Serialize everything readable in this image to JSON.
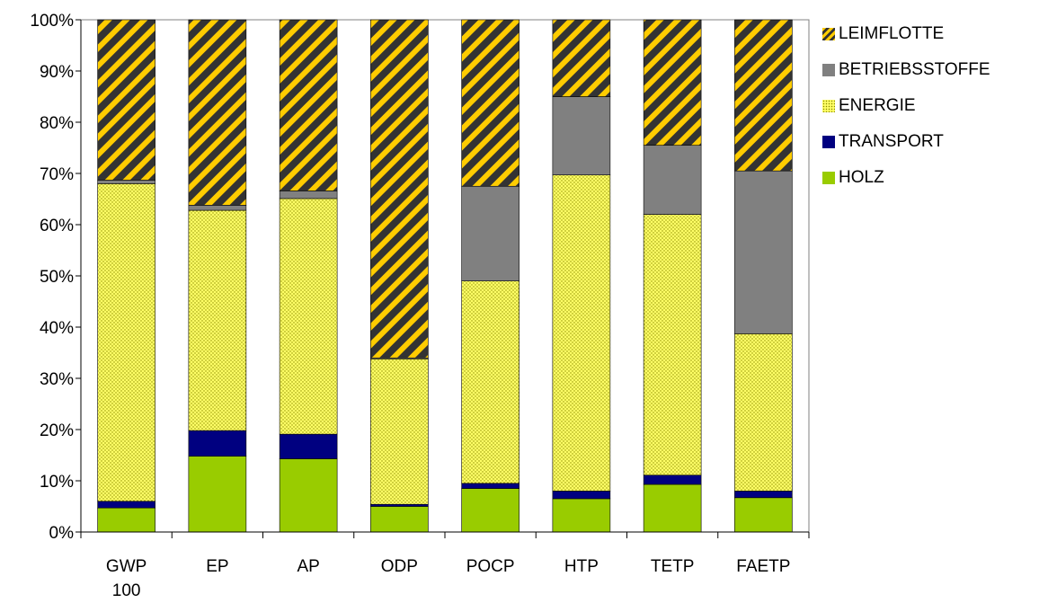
{
  "chart_data": {
    "type": "bar",
    "stacked": true,
    "title": "",
    "xlabel": "",
    "ylabel": "",
    "ylim": [
      0,
      100
    ],
    "y_ticks": [
      "0%",
      "10%",
      "20%",
      "30%",
      "40%",
      "50%",
      "60%",
      "70%",
      "80%",
      "90%",
      "100%"
    ],
    "categories": [
      [
        "GWP",
        "100"
      ],
      [
        "EP"
      ],
      [
        "AP"
      ],
      [
        "ODP"
      ],
      [
        "POCP"
      ],
      [
        "HTP"
      ],
      [
        "TETP"
      ],
      [
        "FAETP"
      ]
    ],
    "legend_position": "right",
    "grid": false,
    "series": [
      {
        "name": "HOLZ",
        "color": "#99cc00",
        "pattern": "solid",
        "values": [
          4.7,
          14.8,
          14.3,
          5.0,
          8.5,
          6.5,
          9.3,
          6.7
        ]
      },
      {
        "name": "TRANSPORT",
        "color": "#000080",
        "pattern": "solid",
        "values": [
          1.3,
          5.0,
          4.8,
          0.4,
          1.0,
          1.5,
          1.8,
          1.3
        ]
      },
      {
        "name": "ENERGIE",
        "color": "#ffff66",
        "pattern": "dotted",
        "values": [
          62.0,
          43.0,
          46.0,
          28.4,
          39.5,
          61.7,
          50.9,
          30.7
        ]
      },
      {
        "name": "BETRIEBSSTOFFE",
        "color": "#808080",
        "pattern": "solid",
        "values": [
          0.7,
          1.0,
          1.5,
          0.2,
          18.5,
          15.3,
          13.5,
          31.8
        ]
      },
      {
        "name": "LEIMFLOTTE",
        "color": "#ffcc00",
        "pattern": "diagonal-stripes",
        "values": [
          31.3,
          36.2,
          33.4,
          66.0,
          32.5,
          15.0,
          24.5,
          29.5
        ]
      }
    ],
    "legend_order": [
      "LEIMFLOTTE",
      "BETRIEBSSTOFFE",
      "ENERGIE",
      "TRANSPORT",
      "HOLZ"
    ]
  }
}
